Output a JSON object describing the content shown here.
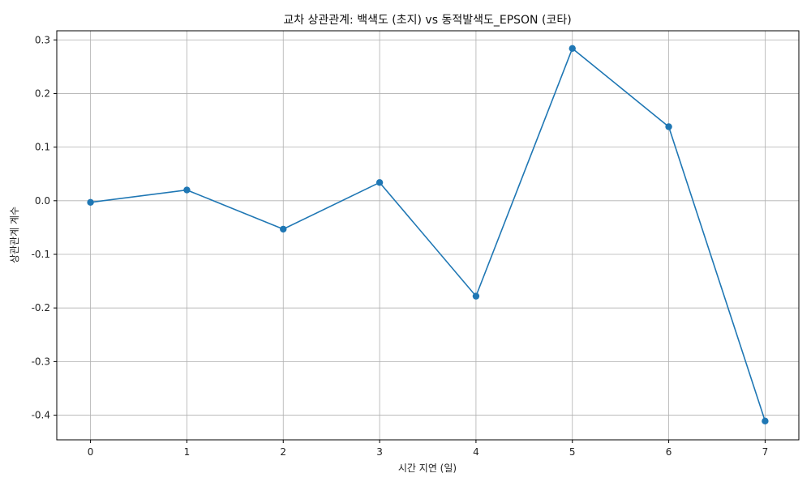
{
  "chart_data": {
    "type": "line",
    "title": "교차 상관관계: 백색도 (초지) vs 동적발색도_EPSON (코타)",
    "xlabel": "시간 지연 (일)",
    "ylabel": "상관관계 계수",
    "x": [
      0,
      1,
      2,
      3,
      4,
      5,
      6,
      7
    ],
    "series": [
      {
        "values": [
          -0.003,
          0.02,
          -0.053,
          0.034,
          -0.178,
          0.284,
          0.138,
          -0.411
        ]
      }
    ],
    "xlim": [
      -0.35,
      7.35
    ],
    "ylim": [
      -0.446,
      0.317
    ],
    "xticks": [
      "0",
      "1",
      "2",
      "3",
      "4",
      "5",
      "6",
      "7"
    ],
    "xtick_values": [
      0,
      1,
      2,
      3,
      4,
      5,
      6,
      7
    ],
    "yticks": [
      "-0.4",
      "-0.3",
      "-0.2",
      "-0.1",
      "0.0",
      "0.1",
      "0.2",
      "0.3"
    ],
    "ytick_values": [
      -0.4,
      -0.3,
      -0.2,
      -0.1,
      0.0,
      0.1,
      0.2,
      0.3
    ],
    "grid": true,
    "marker": "circle",
    "color": "#1f77b4"
  }
}
